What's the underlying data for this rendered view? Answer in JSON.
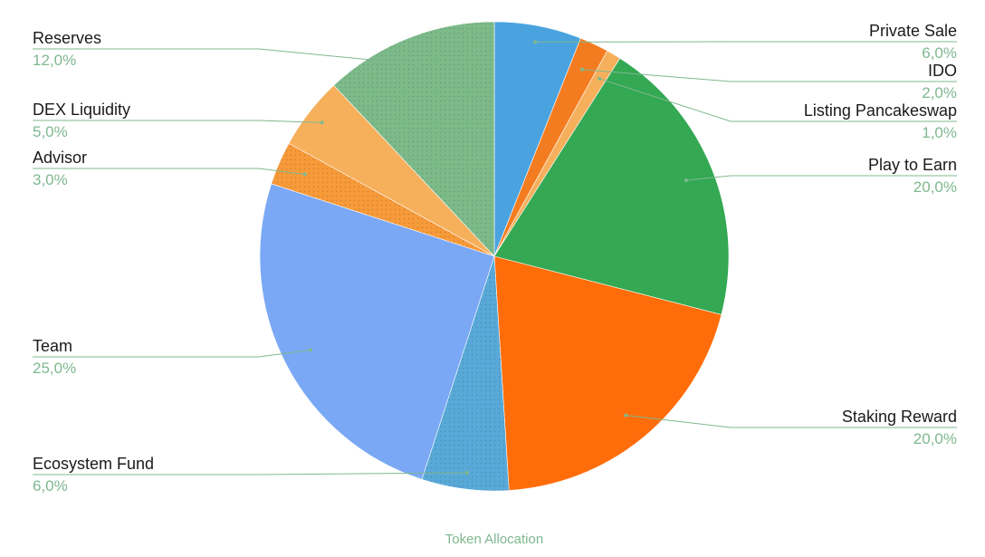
{
  "chart_data": {
    "type": "pie",
    "title": "Token Allocation",
    "start_angle_deg": 0,
    "direction": "clockwise",
    "slices": [
      {
        "name": "Private Sale",
        "value": 6.0,
        "label": "6,0%",
        "color": "#4aa3df",
        "side": "right",
        "pattern": false
      },
      {
        "name": "IDO",
        "value": 2.0,
        "label": "2,0%",
        "color": "#f47c20",
        "side": "right",
        "pattern": false
      },
      {
        "name": "Listing Pancakeswap",
        "value": 1.0,
        "label": "1,0%",
        "color": "#f6b05c",
        "side": "right",
        "pattern": false
      },
      {
        "name": "Play to Earn",
        "value": 20.0,
        "label": "20,0%",
        "color": "#34a853",
        "side": "right",
        "pattern": false
      },
      {
        "name": "Staking Reward",
        "value": 20.0,
        "label": "20,0%",
        "color": "#ff6d0a",
        "side": "right",
        "pattern": false
      },
      {
        "name": "Ecosystem Fund",
        "value": 6.0,
        "label": "6,0%",
        "color": "#59a9d8",
        "side": "left",
        "pattern": true
      },
      {
        "name": "Team",
        "value": 25.0,
        "label": "25,0%",
        "color": "#7aa8f5",
        "side": "left",
        "pattern": false
      },
      {
        "name": "Advisor",
        "value": 3.0,
        "label": "3,0%",
        "color": "#f79a3a",
        "side": "left",
        "pattern": true
      },
      {
        "name": "DEX Liquidity",
        "value": 5.0,
        "label": "5,0%",
        "color": "#f6b05c",
        "side": "left",
        "pattern": false
      },
      {
        "name": "Reserves",
        "value": 12.0,
        "label": "12,0%",
        "color": "#7dba8a",
        "side": "left",
        "pattern": true
      }
    ]
  }
}
